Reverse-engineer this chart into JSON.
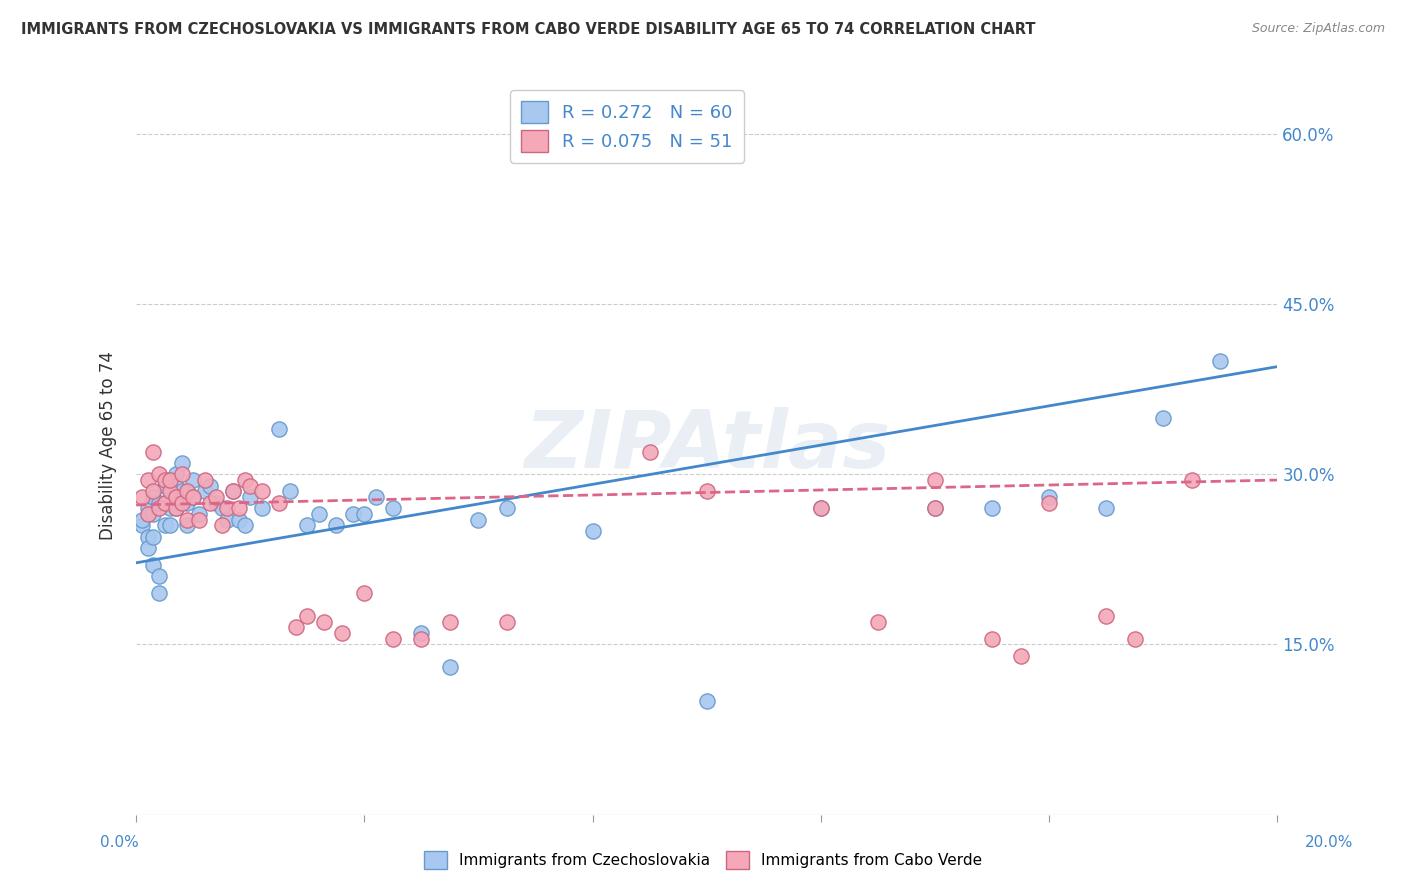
{
  "title": "IMMIGRANTS FROM CZECHOSLOVAKIA VS IMMIGRANTS FROM CABO VERDE DISABILITY AGE 65 TO 74 CORRELATION CHART",
  "source": "Source: ZipAtlas.com",
  "ylabel": "Disability Age 65 to 74",
  "legend_label1": "Immigrants from Czechoslovakia",
  "legend_label2": "Immigrants from Cabo Verde",
  "R1": 0.272,
  "N1": 60,
  "R2": 0.075,
  "N2": 51,
  "color1": "#A8C8F0",
  "color2": "#F4A8B8",
  "color1_edge": "#6699CC",
  "color2_edge": "#CC6680",
  "line1_color": "#4488CC",
  "line2_color": "#DD6688",
  "tick_color": "#4488CC",
  "background": "#FFFFFF",
  "scatter1_x": [
    0.001,
    0.001,
    0.002,
    0.002,
    0.002,
    0.003,
    0.003,
    0.003,
    0.003,
    0.004,
    0.004,
    0.004,
    0.005,
    0.005,
    0.005,
    0.006,
    0.006,
    0.006,
    0.007,
    0.007,
    0.007,
    0.008,
    0.008,
    0.009,
    0.009,
    0.01,
    0.01,
    0.011,
    0.012,
    0.013,
    0.014,
    0.015,
    0.016,
    0.017,
    0.018,
    0.019,
    0.02,
    0.022,
    0.025,
    0.027,
    0.03,
    0.032,
    0.035,
    0.038,
    0.04,
    0.042,
    0.045,
    0.05,
    0.055,
    0.06,
    0.065,
    0.08,
    0.1,
    0.12,
    0.14,
    0.15,
    0.16,
    0.17,
    0.18,
    0.19
  ],
  "scatter1_y": [
    0.255,
    0.26,
    0.27,
    0.245,
    0.235,
    0.265,
    0.28,
    0.245,
    0.22,
    0.275,
    0.21,
    0.195,
    0.29,
    0.275,
    0.255,
    0.295,
    0.27,
    0.255,
    0.3,
    0.29,
    0.27,
    0.31,
    0.285,
    0.275,
    0.255,
    0.295,
    0.28,
    0.265,
    0.285,
    0.29,
    0.275,
    0.27,
    0.26,
    0.285,
    0.26,
    0.255,
    0.28,
    0.27,
    0.34,
    0.285,
    0.255,
    0.265,
    0.255,
    0.265,
    0.265,
    0.28,
    0.27,
    0.16,
    0.13,
    0.26,
    0.27,
    0.25,
    0.1,
    0.27,
    0.27,
    0.27,
    0.28,
    0.27,
    0.35,
    0.4
  ],
  "scatter2_x": [
    0.001,
    0.002,
    0.002,
    0.003,
    0.003,
    0.004,
    0.004,
    0.005,
    0.005,
    0.006,
    0.006,
    0.007,
    0.007,
    0.008,
    0.008,
    0.009,
    0.009,
    0.01,
    0.011,
    0.012,
    0.013,
    0.014,
    0.015,
    0.016,
    0.017,
    0.018,
    0.019,
    0.02,
    0.022,
    0.025,
    0.028,
    0.03,
    0.033,
    0.036,
    0.04,
    0.045,
    0.05,
    0.055,
    0.065,
    0.09,
    0.1,
    0.12,
    0.13,
    0.14,
    0.15,
    0.155,
    0.16,
    0.17,
    0.175,
    0.185,
    0.14
  ],
  "scatter2_y": [
    0.28,
    0.265,
    0.295,
    0.32,
    0.285,
    0.3,
    0.27,
    0.295,
    0.275,
    0.285,
    0.295,
    0.27,
    0.28,
    0.3,
    0.275,
    0.26,
    0.285,
    0.28,
    0.26,
    0.295,
    0.275,
    0.28,
    0.255,
    0.27,
    0.285,
    0.27,
    0.295,
    0.29,
    0.285,
    0.275,
    0.165,
    0.175,
    0.17,
    0.16,
    0.195,
    0.155,
    0.155,
    0.17,
    0.17,
    0.32,
    0.285,
    0.27,
    0.17,
    0.295,
    0.155,
    0.14,
    0.275,
    0.175,
    0.155,
    0.295,
    0.27
  ],
  "xlim": [
    0.0,
    0.2
  ],
  "ylim": [
    0.0,
    0.65
  ],
  "yticks": [
    0.15,
    0.3,
    0.45,
    0.6
  ],
  "xticks": [
    0.0,
    0.04,
    0.08,
    0.12,
    0.16,
    0.2
  ],
  "line1_x0": 0.0,
  "line1_y0": 0.222,
  "line1_x1": 0.2,
  "line1_y1": 0.395,
  "line2_x0": 0.0,
  "line2_y0": 0.273,
  "line2_x1": 0.2,
  "line2_y1": 0.295
}
